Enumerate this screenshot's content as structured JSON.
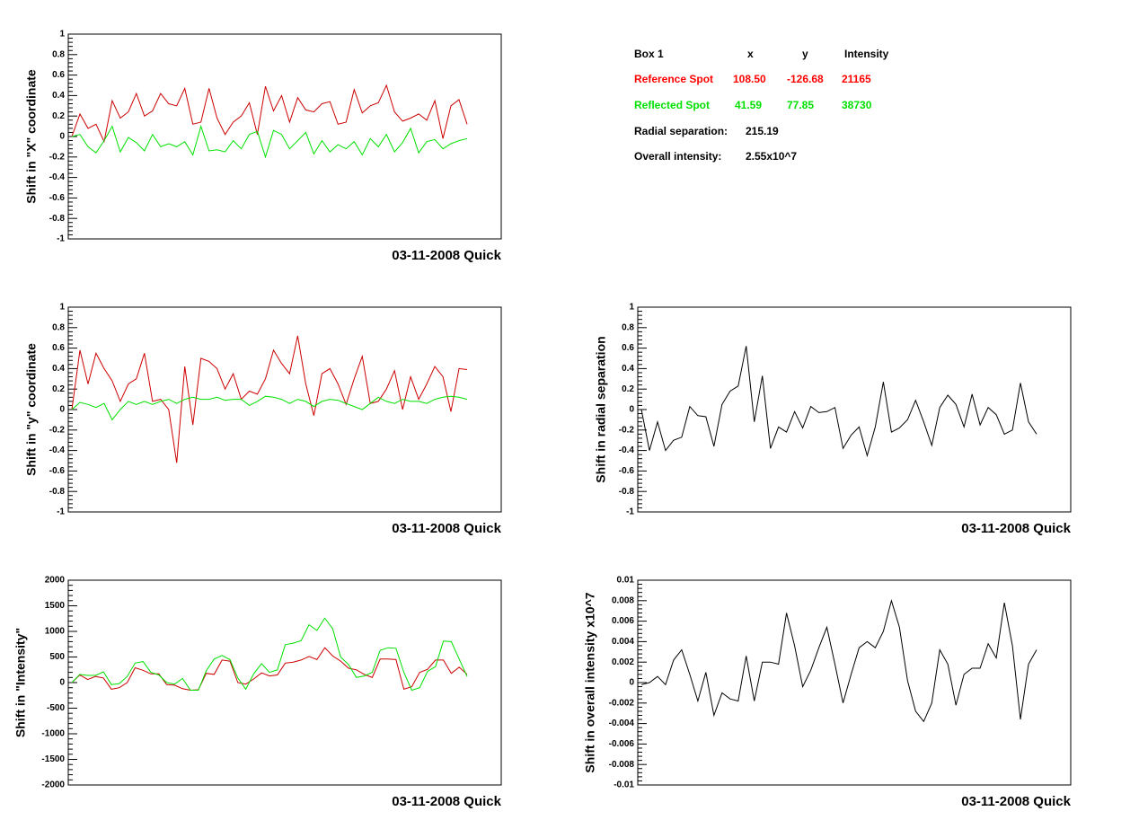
{
  "chart_data": [
    {
      "type": "line",
      "ylabel": "Shift in \"X\" coordinate",
      "footer": "03-11-2008 Quick",
      "ylim": [
        -1,
        1
      ],
      "yticks": [
        -1,
        -0.8,
        -0.6,
        -0.4,
        -0.2,
        0,
        0.2,
        0.4,
        0.6,
        0.8,
        1
      ],
      "series": [
        {
          "color": "#cc0000",
          "values": [
            0,
            0.22,
            0.08,
            0.12,
            -0.05,
            0.35,
            0.18,
            0.24,
            0.42,
            0.2,
            0.25,
            0.42,
            0.32,
            0.3,
            0.47,
            0.12,
            0.14,
            0.47,
            0.18,
            0.02,
            0.14,
            0.2,
            0.33,
            0.02,
            0.49,
            0.25,
            0.4,
            0.14,
            0.38,
            0.26,
            0.24,
            0.32,
            0.34,
            0.12,
            0.14,
            0.46,
            0.23,
            0.3,
            0.33,
            0.5,
            0.24,
            0.15,
            0.18,
            0.22,
            0.16,
            0.35,
            -0.02,
            0.3,
            0.36,
            0.12
          ]
        },
        {
          "color": "#00e000",
          "values": [
            0,
            0.02,
            -0.1,
            -0.16,
            -0.04,
            0.1,
            -0.15,
            -0.01,
            -0.06,
            -0.14,
            0.02,
            -0.1,
            -0.07,
            -0.1,
            -0.05,
            -0.18,
            0.1,
            -0.14,
            -0.13,
            -0.15,
            -0.04,
            -0.12,
            0.02,
            0.05,
            -0.2,
            0.06,
            0.02,
            -0.12,
            -0.04,
            0.04,
            -0.17,
            -0.04,
            -0.15,
            -0.08,
            -0.12,
            -0.05,
            -0.18,
            -0.02,
            -0.1,
            0.02,
            -0.15,
            -0.06,
            0.08,
            -0.16,
            -0.05,
            -0.03,
            -0.12,
            -0.07,
            -0.04,
            -0.02
          ]
        }
      ]
    },
    {
      "type": "line",
      "ylabel": "Shift in \"y\" coordinate",
      "footer": "03-11-2008 Quick",
      "ylim": [
        -1,
        1
      ],
      "yticks": [
        -1,
        -0.8,
        -0.6,
        -0.4,
        -0.2,
        0,
        0.2,
        0.4,
        0.6,
        0.8,
        1
      ],
      "series": [
        {
          "color": "#cc0000",
          "values": [
            0,
            0.58,
            0.25,
            0.55,
            0.4,
            0.28,
            0.08,
            0.25,
            0.3,
            0.55,
            0.08,
            0.1,
            0,
            -0.52,
            0.42,
            -0.15,
            0.5,
            0.47,
            0.4,
            0.2,
            0.35,
            0.1,
            0.18,
            0.15,
            0.3,
            0.58,
            0.45,
            0.35,
            0.72,
            0.25,
            -0.06,
            0.35,
            0.4,
            0.25,
            0.05,
            0.3,
            0.52,
            0.06,
            0.08,
            0.2,
            0.38,
            0,
            0.32,
            0.1,
            0.25,
            0.42,
            0.32,
            -0.02,
            0.4,
            0.39
          ]
        },
        {
          "color": "#00e000",
          "values": [
            0,
            0.07,
            0.05,
            0.02,
            0.06,
            -0.1,
            0,
            0.08,
            0.05,
            0.08,
            0.05,
            0.08,
            0.1,
            0.06,
            0.1,
            0.12,
            0.1,
            0.1,
            0.12,
            0.09,
            0.1,
            0.1,
            0.04,
            0.08,
            0.13,
            0.12,
            0.1,
            0.06,
            0.1,
            0.08,
            0.03,
            0.08,
            0.1,
            0.09,
            0.06,
            0.03,
            0,
            0.06,
            0.12,
            0.08,
            0.06,
            0.1,
            0.08,
            0.08,
            0.06,
            0.1,
            0.12,
            0.13,
            0.12,
            0.1
          ]
        }
      ]
    },
    {
      "type": "line",
      "ylabel": "Shift in \"Intensity\"",
      "footer": "03-11-2008 Quick",
      "ylim": [
        -2000,
        2000
      ],
      "yticks": [
        -2000,
        -1500,
        -1000,
        -500,
        0,
        500,
        1000,
        1500,
        2000
      ],
      "series": [
        {
          "color": "#cc0000",
          "values": [
            0,
            150,
            60,
            120,
            90,
            -130,
            -100,
            0,
            290,
            240,
            170,
            170,
            -40,
            -50,
            -120,
            -150,
            -140,
            180,
            160,
            440,
            420,
            0,
            -30,
            70,
            190,
            130,
            150,
            380,
            400,
            440,
            510,
            450,
            680,
            520,
            420,
            280,
            250,
            160,
            100,
            460,
            460,
            450,
            -130,
            -80,
            200,
            260,
            440,
            440,
            180,
            300,
            160
          ]
        },
        {
          "color": "#00e000",
          "values": [
            0,
            160,
            140,
            140,
            210,
            -40,
            -20,
            120,
            380,
            410,
            200,
            150,
            0,
            -30,
            80,
            -150,
            -150,
            230,
            460,
            530,
            450,
            90,
            -130,
            170,
            370,
            200,
            250,
            740,
            770,
            820,
            1130,
            1020,
            1260,
            1050,
            500,
            350,
            100,
            130,
            200,
            630,
            680,
            670,
            200,
            -150,
            -100,
            220,
            310,
            810,
            800,
            460,
            120
          ]
        }
      ]
    },
    {
      "type": "line",
      "ylabel": "Shift in radial separation",
      "footer": "03-11-2008 Quick",
      "ylim": [
        -1,
        1
      ],
      "yticks": [
        -1,
        -0.8,
        -0.6,
        -0.4,
        -0.2,
        0,
        0.2,
        0.4,
        0.6,
        0.8,
        1
      ],
      "series": [
        {
          "color": "#000000",
          "values": [
            0,
            -0.4,
            -0.12,
            -0.4,
            -0.3,
            -0.27,
            0.03,
            -0.06,
            -0.07,
            -0.36,
            0.05,
            0.18,
            0.23,
            0.62,
            -0.12,
            0.33,
            -0.38,
            -0.17,
            -0.22,
            -0.02,
            -0.18,
            0.03,
            -0.03,
            -0.02,
            0.02,
            -0.38,
            -0.25,
            -0.17,
            -0.45,
            -0.17,
            0.27,
            -0.22,
            -0.18,
            -0.1,
            0.09,
            -0.12,
            -0.35,
            0.02,
            0.14,
            0.05,
            -0.17,
            0.15,
            -0.15,
            0.02,
            -0.05,
            -0.24,
            -0.2,
            0.26,
            -0.12,
            -0.24
          ]
        }
      ]
    },
    {
      "type": "line",
      "ylabel": "Shift in overall intensity x10^7",
      "footer": "03-11-2008 Quick",
      "ylim": [
        -0.01,
        0.01
      ],
      "yticks": [
        -0.01,
        -0.008,
        -0.006,
        -0.004,
        -0.002,
        0,
        0.002,
        0.004,
        0.006,
        0.008,
        0.01
      ],
      "series": [
        {
          "color": "#000000",
          "values": [
            -0.0002,
            0,
            0.0006,
            -0.0002,
            0.0022,
            0.0032,
            0.0008,
            -0.0018,
            0.001,
            -0.0032,
            -0.001,
            -0.0016,
            -0.0018,
            0.0026,
            -0.0018,
            0.002,
            0.002,
            0.0018,
            0.0068,
            0.0036,
            -0.0004,
            0.0012,
            0.0034,
            0.0054,
            0.0018,
            -0.002,
            0.0008,
            0.0034,
            0.004,
            0.0034,
            0.005,
            0.008,
            0.0054,
            0.0002,
            -0.0028,
            -0.0038,
            -0.002,
            0.0032,
            0.0018,
            -0.0022,
            0.0008,
            0.0014,
            0.0014,
            0.0038,
            0.0024,
            0.0078,
            0.0036,
            -0.0036,
            0.0018,
            0.0032
          ]
        }
      ]
    }
  ],
  "info": {
    "header": [
      "Box 1",
      "x",
      "y",
      "Intensity"
    ],
    "rows": [
      {
        "label": "Reference Spot",
        "values": [
          "108.50",
          "-126.68",
          "21165"
        ]
      },
      {
        "label": "Reflected Spot",
        "values": [
          "41.59",
          "77.85",
          "38730"
        ]
      }
    ],
    "radial_separation": {
      "label": "Radial separation:",
      "value": "215.19"
    },
    "overall_intensity": {
      "label": "Overall intensity:",
      "value": "2.55x10^7"
    }
  }
}
